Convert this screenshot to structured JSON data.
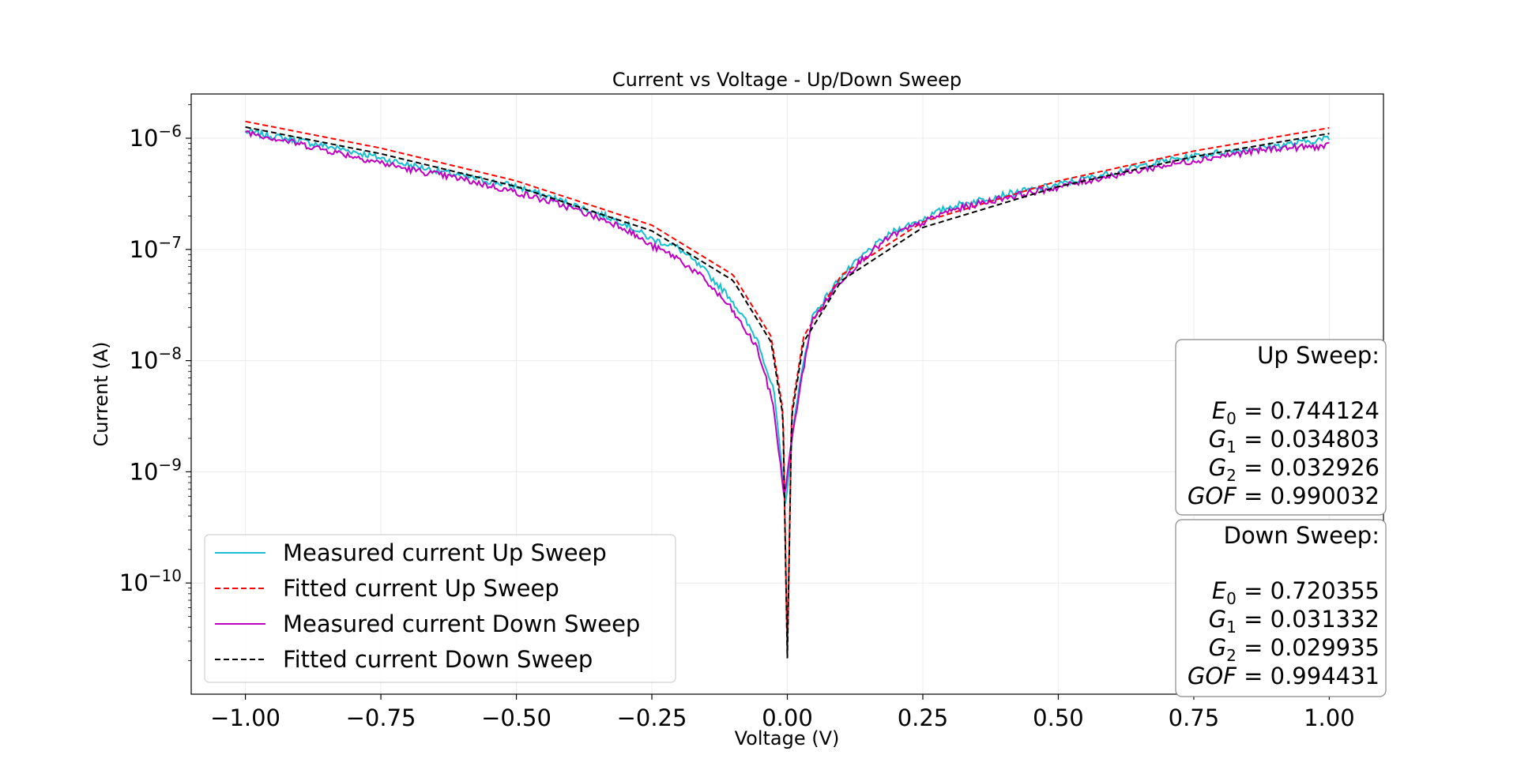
{
  "chart_data": {
    "type": "line",
    "title": "Current vs Voltage - Up/Down Sweep",
    "xlabel": "Voltage (V)",
    "ylabel": "Current (A)",
    "yscale": "log",
    "xlim": [
      -1.1,
      1.1
    ],
    "ylim": [
      1e-11,
      2.5e-06
    ],
    "grid": true,
    "x_ticks": [
      {
        "value": -1.0,
        "label": "−1.00"
      },
      {
        "value": -0.75,
        "label": "−0.75"
      },
      {
        "value": -0.5,
        "label": "−0.50"
      },
      {
        "value": -0.25,
        "label": "−0.25"
      },
      {
        "value": 0.0,
        "label": "0.00"
      },
      {
        "value": 0.25,
        "label": "0.25"
      },
      {
        "value": 0.5,
        "label": "0.50"
      },
      {
        "value": 0.75,
        "label": "0.75"
      },
      {
        "value": 1.0,
        "label": "1.00"
      }
    ],
    "y_ticks": [
      {
        "value": 1e-06,
        "base": "10",
        "exp": "−6"
      },
      {
        "value": 1e-07,
        "base": "10",
        "exp": "−7"
      },
      {
        "value": 1e-08,
        "base": "10",
        "exp": "−8"
      },
      {
        "value": 1e-09,
        "base": "10",
        "exp": "−9"
      },
      {
        "value": 1e-10,
        "base": "10",
        "exp": "−10"
      }
    ],
    "legend_position": "lower-left",
    "series": [
      {
        "name": "Measured current Up Sweep",
        "color": "#17becf",
        "style": "solid",
        "kind": "measured",
        "offset": -0.004,
        "x": [
          -1.0,
          -0.9,
          -0.8,
          -0.7,
          -0.6,
          -0.5,
          -0.4,
          -0.3,
          -0.25,
          -0.2,
          -0.15,
          -0.1,
          -0.05,
          -0.02,
          0.0,
          0.02,
          0.05,
          0.1,
          0.15,
          0.2,
          0.25,
          0.3,
          0.4,
          0.5,
          0.6,
          0.7,
          0.8,
          0.9,
          1.0
        ],
        "y": [
          1.15e-06,
          9.5e-07,
          7.6e-07,
          5.8e-07,
          4.6e-07,
          3.7e-07,
          2.6e-07,
          1.75e-07,
          1.25e-07,
          1.05e-07,
          6.5e-08,
          3.6e-08,
          1.5e-08,
          5e-09,
          5e-10,
          4e-09,
          2.5e-08,
          5.5e-08,
          9.5e-08,
          1.45e-07,
          1.85e-07,
          2.4e-07,
          3.1e-07,
          3.8e-07,
          4.9e-07,
          6.3e-07,
          7.5e-07,
          8.5e-07,
          1e-06
        ]
      },
      {
        "name": "Fitted current Up Sweep",
        "color": "#ff0000",
        "style": "dashed",
        "kind": "fit",
        "E0": 0.744124,
        "G1": 0.034803,
        "G2": 0.032926,
        "GOF": 0.990032
      },
      {
        "name": "Measured current Down Sweep",
        "color": "#bf00bf",
        "style": "solid",
        "kind": "measured",
        "offset": -0.006,
        "x": [
          -1.0,
          -0.9,
          -0.8,
          -0.7,
          -0.6,
          -0.5,
          -0.4,
          -0.3,
          -0.25,
          -0.2,
          -0.15,
          -0.1,
          -0.05,
          -0.02,
          0.0,
          0.02,
          0.05,
          0.1,
          0.15,
          0.2,
          0.25,
          0.3,
          0.4,
          0.5,
          0.6,
          0.7,
          0.8,
          0.9,
          1.0
        ],
        "y": [
          1.15e-06,
          8.9e-07,
          6.9e-07,
          5.3e-07,
          4.3e-07,
          3.3e-07,
          2.4e-07,
          1.6e-07,
          1.1e-07,
          8.5e-08,
          5.5e-08,
          3e-08,
          1.3e-08,
          4e-09,
          6e-10,
          3e-09,
          2.2e-08,
          5e-08,
          8.8e-08,
          1.35e-07,
          1.7e-07,
          2.2e-07,
          2.9e-07,
          3.6e-07,
          4.6e-07,
          5.7e-07,
          6.9e-07,
          8.1e-07,
          8.5e-07
        ]
      },
      {
        "name": "Fitted current Down Sweep",
        "color": "#000000",
        "style": "dashed",
        "kind": "fit",
        "E0": 0.720355,
        "G1": 0.031332,
        "G2": 0.029935,
        "GOF": 0.994431
      }
    ],
    "stat_boxes": [
      {
        "title": "Up Sweep:",
        "rows": [
          {
            "sym": "E",
            "sub": "0",
            "value": "0.744124"
          },
          {
            "sym": "G",
            "sub": "1",
            "value": "0.034803"
          },
          {
            "sym": "G",
            "sub": "2",
            "value": "0.032926"
          },
          {
            "sym": "GOF",
            "sub": "",
            "value": "0.990032"
          }
        ]
      },
      {
        "title": "Down Sweep:",
        "rows": [
          {
            "sym": "E",
            "sub": "0",
            "value": "0.720355"
          },
          {
            "sym": "G",
            "sub": "1",
            "value": "0.031332"
          },
          {
            "sym": "G",
            "sub": "2",
            "value": "0.029935"
          },
          {
            "sym": "GOF",
            "sub": "",
            "value": "0.994431"
          }
        ]
      }
    ]
  }
}
